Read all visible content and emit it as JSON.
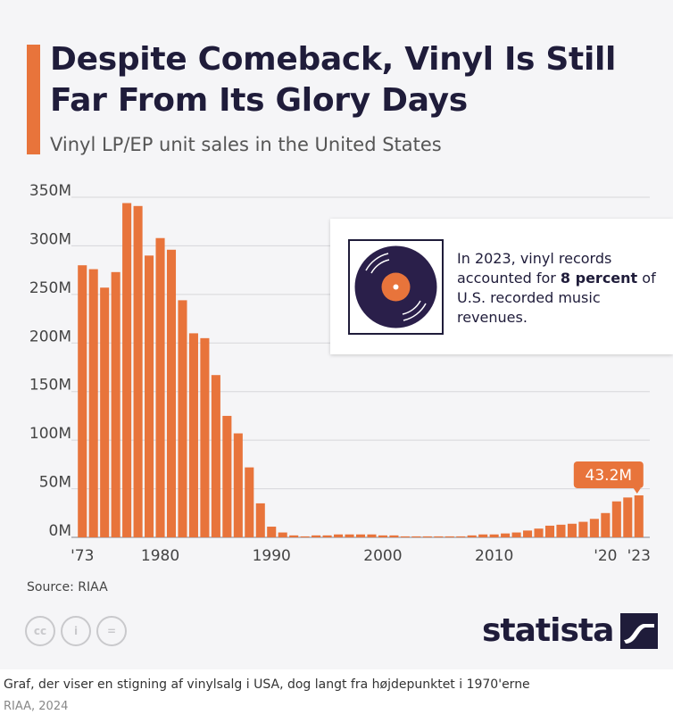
{
  "title": "Despite Comeback, Vinyl Is Still Far From Its Glory Days",
  "subtitle": "Vinyl LP/EP unit sales in the United States",
  "callout": {
    "text_before": "In 2023, vinyl records accounted for ",
    "text_bold": "8 percent",
    "text_after": " of U.S. recorded music revenues.",
    "icon": "vinyl-record-icon"
  },
  "source": "Source: RIAA",
  "brand": "statista",
  "caption": "Graf, der viser en stigning af vinylsalg i USA, dog langt fra højdepunktet i 1970'erne",
  "credit": "RIAA, 2024",
  "colors": {
    "bar": "#e8743b",
    "title": "#1f1c3a",
    "accent": "#e8743b",
    "background": "#f5f5f7"
  },
  "chart_data": {
    "type": "bar",
    "title": "Despite Comeback, Vinyl Is Still Far From Its Glory Days",
    "ylabel": "",
    "xlabel": "",
    "ylim": [
      0,
      350
    ],
    "yunit": "M",
    "yticks": [
      "0M",
      "50M",
      "100M",
      "150M",
      "200M",
      "250M",
      "300M",
      "350M"
    ],
    "xtick_labels": [
      {
        "year": 1973,
        "label": "'73"
      },
      {
        "year": 1980,
        "label": "1980"
      },
      {
        "year": 1990,
        "label": "1990"
      },
      {
        "year": 2000,
        "label": "2000"
      },
      {
        "year": 2010,
        "label": "2010"
      },
      {
        "year": 2020,
        "label": "'20"
      },
      {
        "year": 2023,
        "label": "'23"
      }
    ],
    "categories": [
      1973,
      1974,
      1975,
      1976,
      1977,
      1978,
      1979,
      1980,
      1981,
      1982,
      1983,
      1984,
      1985,
      1986,
      1987,
      1988,
      1989,
      1990,
      1991,
      1992,
      1993,
      1994,
      1995,
      1996,
      1997,
      1998,
      1999,
      2000,
      2001,
      2002,
      2003,
      2004,
      2005,
      2006,
      2007,
      2008,
      2009,
      2010,
      2011,
      2012,
      2013,
      2014,
      2015,
      2016,
      2017,
      2018,
      2019,
      2020,
      2021,
      2022,
      2023
    ],
    "values": [
      280,
      276,
      257,
      273,
      344,
      341,
      290,
      308,
      296,
      244,
      210,
      205,
      167,
      125,
      107,
      72,
      35,
      11,
      5,
      2,
      1,
      2,
      2,
      3,
      3,
      3,
      3,
      2,
      2,
      1,
      1,
      1,
      1,
      1,
      1,
      2,
      3,
      3,
      4,
      5,
      7,
      9,
      12,
      13,
      14,
      16,
      19,
      25,
      37,
      41,
      43.2
    ],
    "annotation": {
      "year": 2023,
      "label": "43.2M"
    },
    "grid": true,
    "legend": "none"
  }
}
